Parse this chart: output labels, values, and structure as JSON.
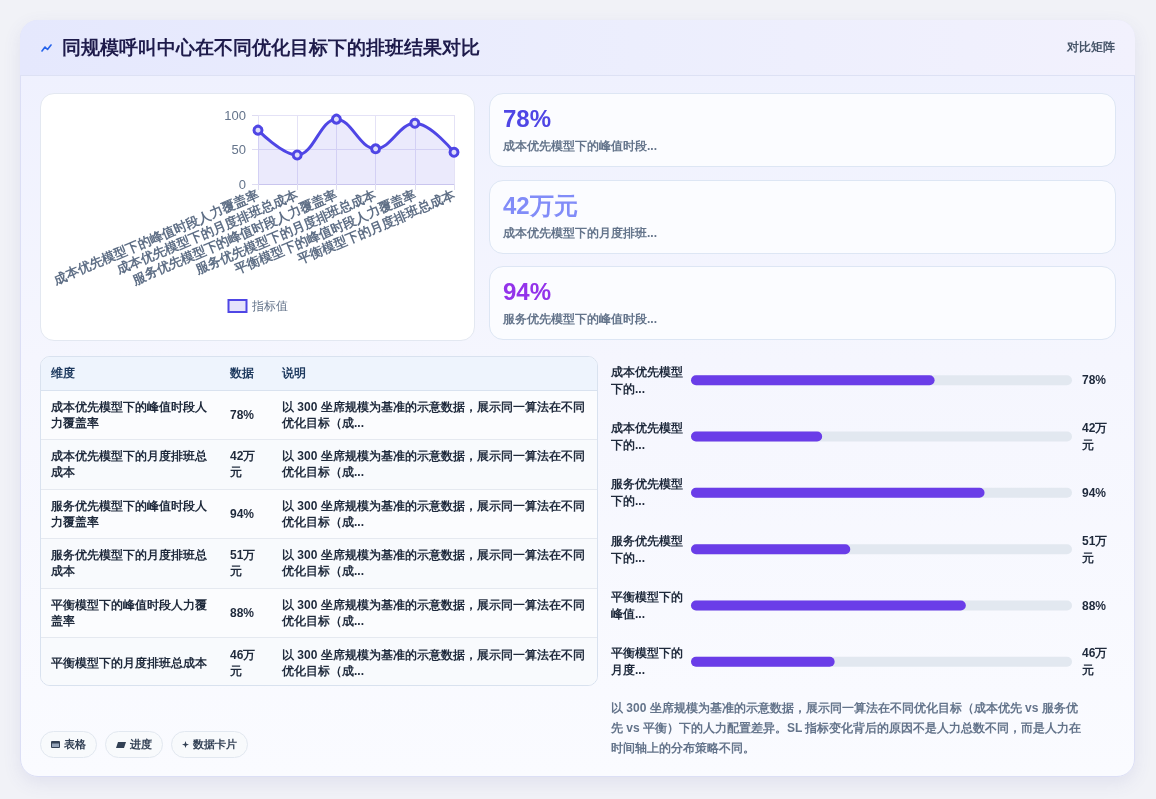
{
  "chart_data": [
    {
      "type": "other",
      "title": "同规模呼叫中心在不同优化目标下的排班结果对比",
      "annotations": [
        "对比矩阵"
      ]
    },
    {
      "type": "area",
      "categories": [
        "成本优先模型下的峰值时段人力覆盖率",
        "成本优先模型下的月度排班总成本",
        "服务优先模型下的峰值时段人力覆盖率",
        "服务优先模型下的月度排班总成本",
        "平衡模型下的峰值时段人力覆盖率",
        "平衡模型下的月度排班总成本"
      ],
      "series": [
        {
          "name": "指标值",
          "color": "#4f46e5",
          "values": [
            78,
            42,
            94,
            51,
            88,
            46
          ]
        }
      ],
      "ylim": [
        0,
        100
      ],
      "yticks": [
        0,
        50,
        100
      ],
      "grid": true,
      "legend": "bottom",
      "marker": "circle"
    },
    {
      "type": "other",
      "categories": [
        "成本优先模型下的峰值时段...",
        "成本优先模型下的月度排班...",
        "服务优先模型下的峰值时段..."
      ],
      "value_labels": [
        "78%",
        "42万元",
        "94%"
      ]
    },
    {
      "type": "other",
      "categories": [
        "维度",
        "数据",
        "说明"
      ],
      "cell_labels": [
        [
          "成本优先模型下的峰值时段人力覆盖率",
          "78%",
          "以 300 坐席规模为基准的示意数据，展示同一算法在不同优化目标（成..."
        ],
        [
          "成本优先模型下的月度排班总成本",
          "42万元",
          "以 300 坐席规模为基准的示意数据，展示同一算法在不同优化目标（成..."
        ],
        [
          "服务优先模型下的峰值时段人力覆盖率",
          "94%",
          "以 300 坐席规模为基准的示意数据，展示同一算法在不同优化目标（成..."
        ],
        [
          "服务优先模型下的月度排班总成本",
          "51万元",
          "以 300 坐席规模为基准的示意数据，展示同一算法在不同优化目标（成..."
        ],
        [
          "平衡模型下的峰值时段人力覆盖率",
          "88%",
          "以 300 坐席规模为基准的示意数据，展示同一算法在不同优化目标（成..."
        ],
        [
          "平衡模型下的月度排班总成本",
          "46万元",
          "以 300 坐席规模为基准的示意数据，展示同一算法在不同优化目标（成..."
        ]
      ]
    },
    {
      "type": "bar",
      "orientation": "horizontal",
      "categories": [
        "成本优先模型下的...",
        "成本优先模型下的...",
        "服务优先模型下的...",
        "服务优先模型下的...",
        "平衡模型下的峰值...",
        "平衡模型下的月度..."
      ],
      "values": [
        78,
        42,
        94,
        51,
        88,
        46
      ],
      "value_labels": [
        "78%",
        "42万元",
        "94%",
        "51万元",
        "88%",
        "46万元"
      ],
      "color": "#6a3de8",
      "xlim": [
        0,
        122
      ],
      "tick_labels": "y",
      "annotations": [
        "以 300 坐席规模为基准的示意数据，展示同一算法在不同优化目标（成本优先 vs 服务优先 vs 平衡）下的人力配置差异。SL 指标变化背后的原因不是人力总数不同，而是人力在时间轴上的分布策略不同。"
      ]
    },
    {
      "type": "other",
      "annotations": [
        "表格",
        "进度",
        "数据卡片"
      ]
    }
  ]
}
